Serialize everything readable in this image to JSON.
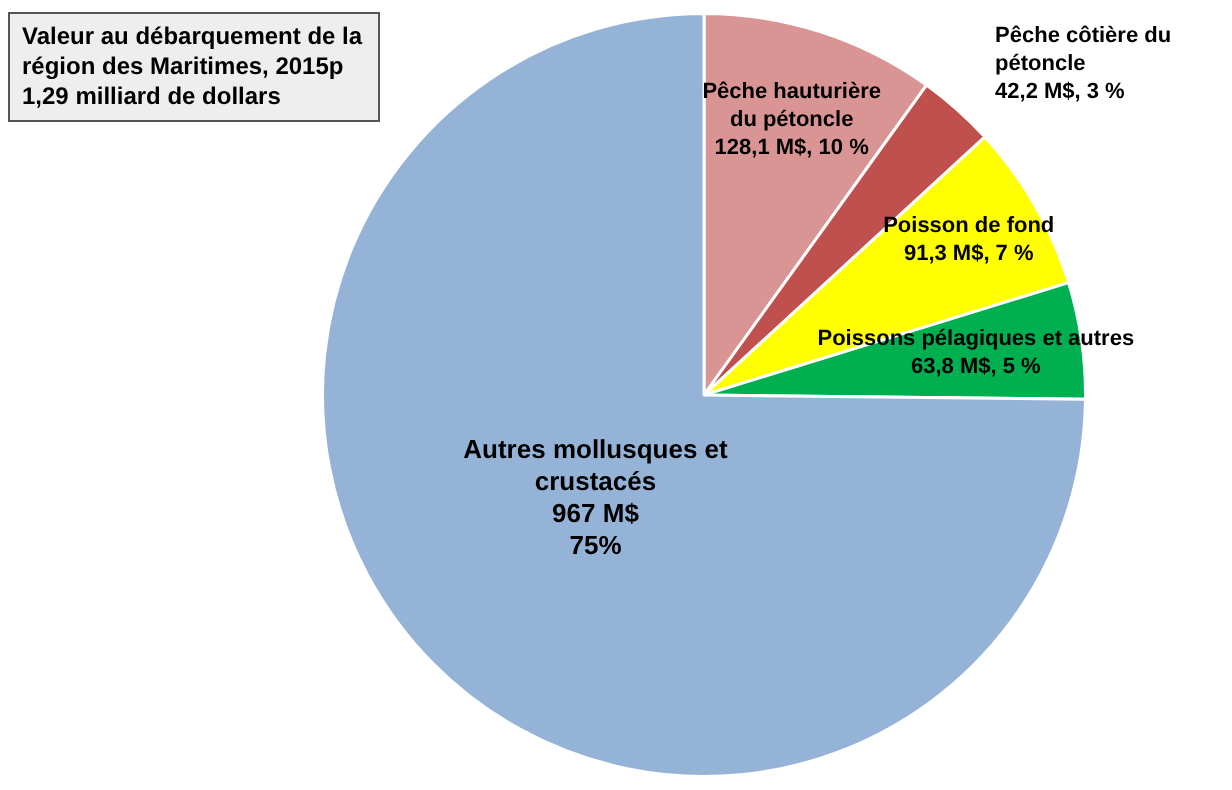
{
  "chart_data": {
    "type": "pie",
    "title": "Valeur au débarquement de la région des Maritimes, 2015p",
    "subtitle": "1,29 milliard de dollars",
    "categories": [
      "Pêche hauturière du pétoncle",
      "Pêche côtière du pétoncle",
      "Poisson de fond",
      "Poissons pélagiques et autres",
      "Autres mollusques et crustacés"
    ],
    "values": [
      128.1,
      42.2,
      91.3,
      63.8,
      967
    ],
    "colors": [
      "#d99594",
      "#c0504d",
      "#ffff00",
      "#00b050",
      "#95b3d7"
    ],
    "value_labels": [
      "128,1 M$, 10 %",
      "42,2 M$, 3 %",
      "91,3 M$, 7 %",
      "63,8 M$, 5 %",
      "967 M$ 75%"
    ]
  }
}
